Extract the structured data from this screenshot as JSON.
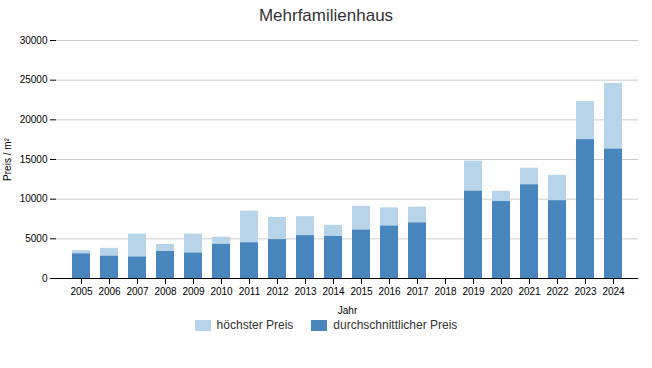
{
  "chart_data": {
    "type": "bar",
    "title": "Mehrfamilienhaus",
    "xlabel": "Jahr",
    "ylabel": "Preis / m²",
    "categories": [
      "2005",
      "2006",
      "2007",
      "2008",
      "2009",
      "2010",
      "2011",
      "2012",
      "2013",
      "2014",
      "2015",
      "2016",
      "2017",
      "2018",
      "2019",
      "2020",
      "2021",
      "2022",
      "2023",
      "2024"
    ],
    "series": [
      {
        "name": "höchster Preis",
        "color": "#b8d4e8",
        "values": [
          3500,
          3800,
          5600,
          4300,
          5600,
          5200,
          8500,
          7700,
          7800,
          6700,
          9100,
          8900,
          9000,
          0,
          14800,
          11000,
          13900,
          13000,
          22300,
          24600
        ]
      },
      {
        "name": "durchschnittlicher Preis",
        "color": "#4a86be",
        "values": [
          3100,
          2800,
          2700,
          3400,
          3200,
          4300,
          4500,
          4900,
          5400,
          5300,
          6100,
          6600,
          7000,
          0,
          11000,
          9700,
          11800,
          9800,
          17500,
          16300
        ]
      }
    ],
    "ylim": [
      0,
      30000
    ],
    "yticks": [
      0,
      5000,
      10000,
      15000,
      20000,
      25000,
      30000
    ],
    "grid": true,
    "legend": "bottom",
    "stacked": false
  }
}
